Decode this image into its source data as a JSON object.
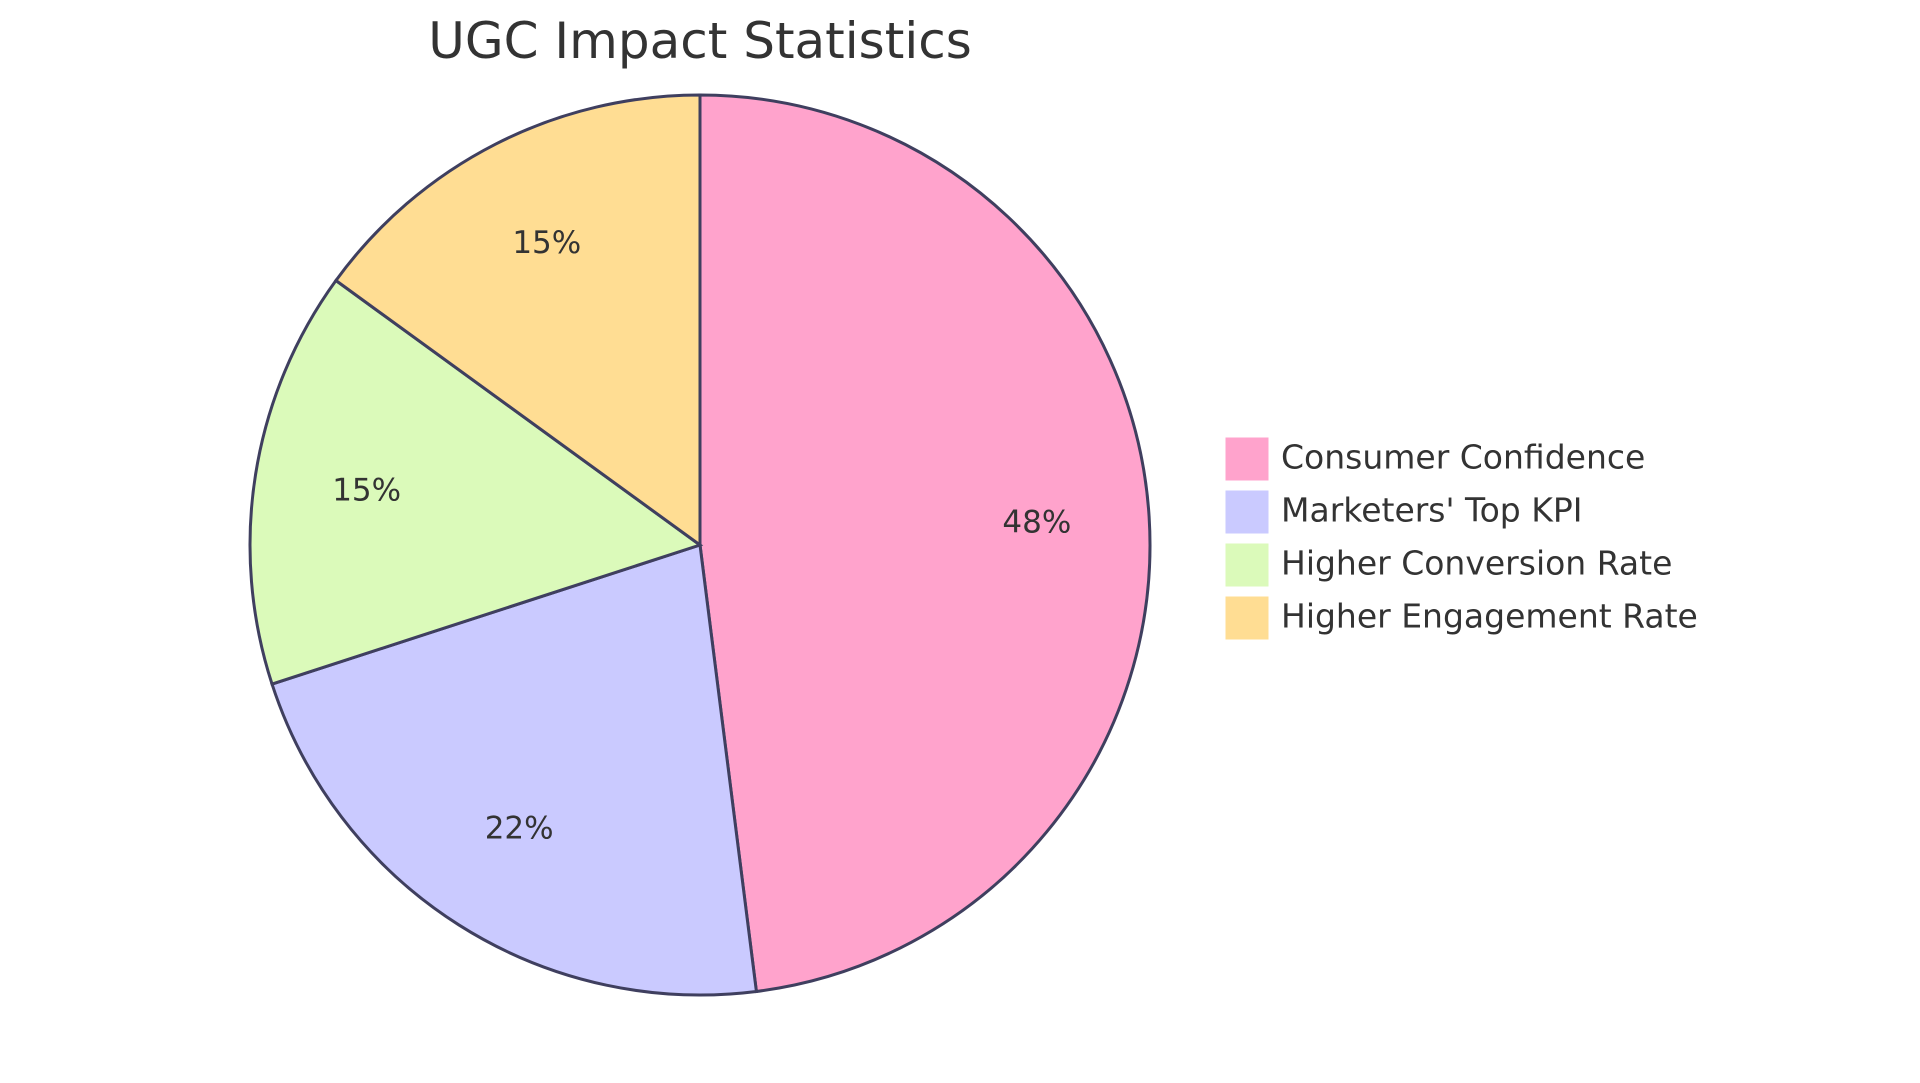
{
  "chart_data": {
    "type": "pie",
    "title": "UGC Impact Statistics",
    "slices": [
      {
        "label": "Consumer Confidence",
        "value": 48,
        "display": "48%",
        "color": "#FFA3CC"
      },
      {
        "label": "Marketers' Top KPI",
        "value": 22,
        "display": "22%",
        "color": "#CACAFF"
      },
      {
        "label": "Higher Conversion Rate",
        "value": 15,
        "display": "15%",
        "color": "#DBFABA"
      },
      {
        "label": "Higher Engagement Rate",
        "value": 15,
        "display": "15%",
        "color": "#FFDD93"
      }
    ],
    "legend_position": "right"
  }
}
